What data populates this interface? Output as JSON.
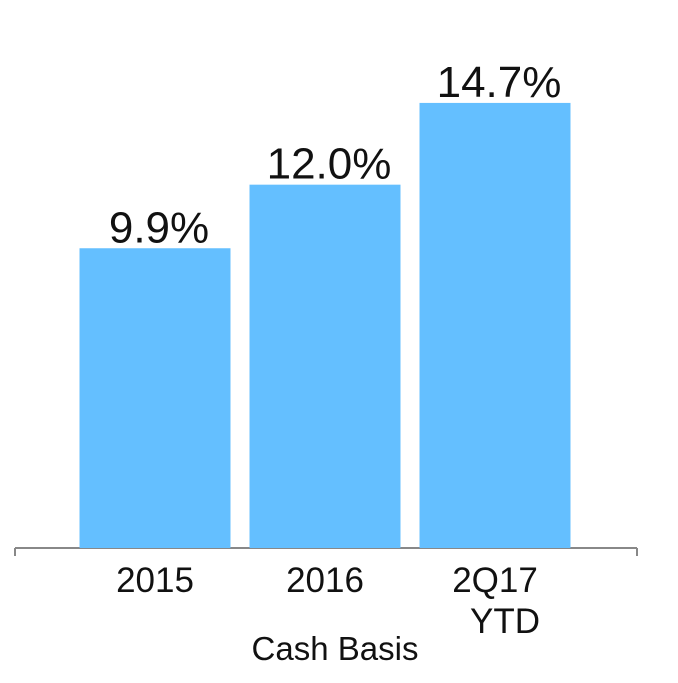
{
  "chart_data": {
    "type": "bar",
    "categories": [
      "2015",
      "2016",
      "2Q17 YTD"
    ],
    "values": [
      9.9,
      12.0,
      14.7
    ],
    "value_labels": [
      "9.9%",
      "12.0%",
      "14.7%"
    ],
    "x_label": "Cash Basis",
    "color": "#64bfff",
    "ylim": [
      0,
      18
    ],
    "grid": false
  }
}
